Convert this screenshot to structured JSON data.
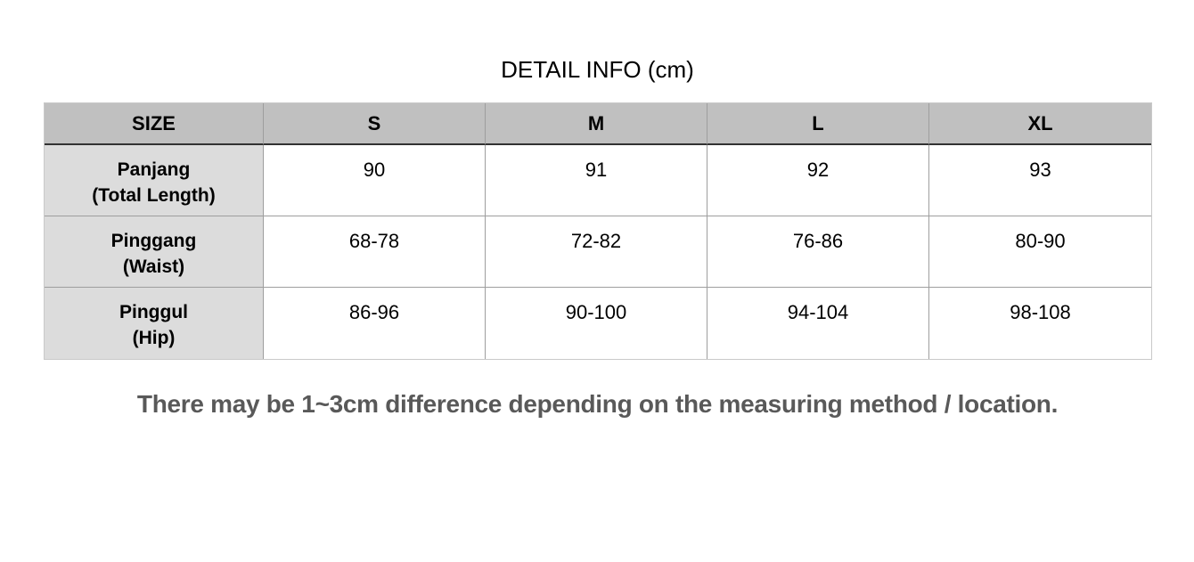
{
  "title": "DETAIL INFO (cm)",
  "table": {
    "columns": [
      "SIZE",
      "S",
      "M",
      "L",
      "XL"
    ],
    "rows": [
      {
        "label_line1": "Panjang",
        "label_line2": "(Total Length)",
        "values": [
          "90",
          "91",
          "92",
          "93"
        ]
      },
      {
        "label_line1": "Pinggang",
        "label_line2": "(Waist)",
        "values": [
          "68-78",
          "72-82",
          "76-86",
          "80-90"
        ]
      },
      {
        "label_line1": "Pinggul",
        "label_line2": "(Hip)",
        "values": [
          "86-96",
          "90-100",
          "94-104",
          "98-108"
        ]
      }
    ]
  },
  "note": "There may be 1~3cm difference depending on the measuring method / location.",
  "colors": {
    "header_bg": "#c0c0c0",
    "label_bg": "#dcdcdc",
    "cell_bg": "#ffffff",
    "grid_border": "#9e9e9e",
    "outer_border": "#c9c9c9",
    "header_divider": "#323232",
    "text": "#000000",
    "note_text": "#595959"
  },
  "chart_data": {
    "type": "table",
    "title": "DETAIL INFO (cm)",
    "unit": "cm",
    "columns": [
      "SIZE",
      "S",
      "M",
      "L",
      "XL"
    ],
    "rows": [
      [
        "Panjang (Total Length)",
        "90",
        "91",
        "92",
        "93"
      ],
      [
        "Pinggang (Waist)",
        "68-78",
        "72-82",
        "76-86",
        "80-90"
      ],
      [
        "Pinggul (Hip)",
        "86-96",
        "90-100",
        "94-104",
        "98-108"
      ]
    ],
    "footnote": "There may be 1~3cm difference depending on the measuring method / location."
  }
}
